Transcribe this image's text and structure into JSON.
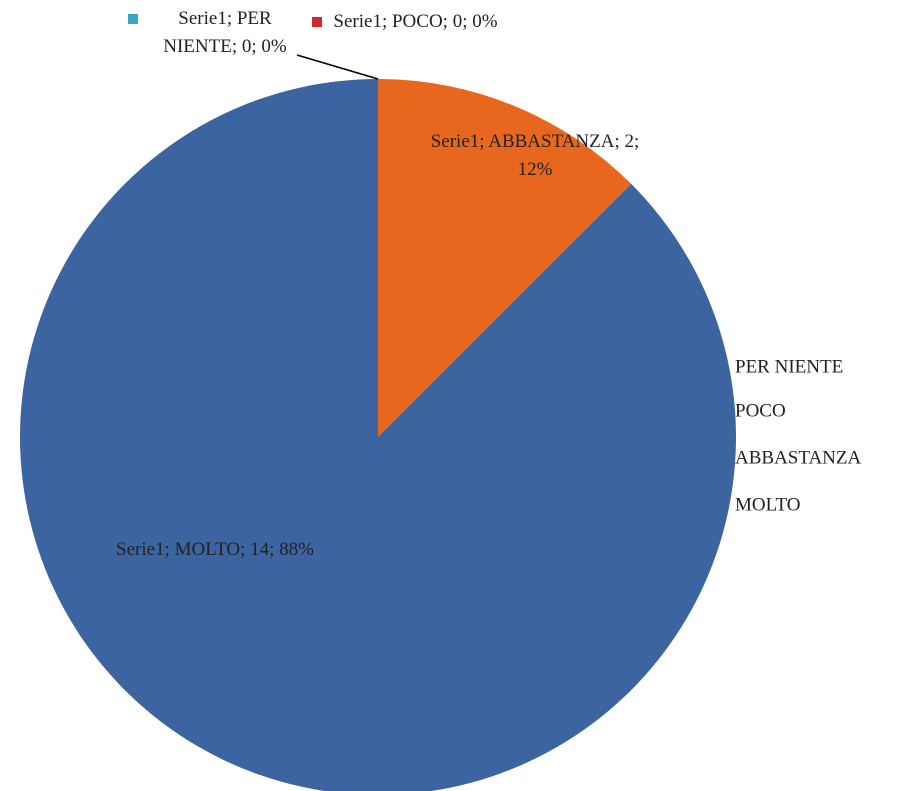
{
  "chart_data": {
    "type": "pie",
    "categories": [
      "PER NIENTE",
      "POCO",
      "ABBASTANZA",
      "MOLTO"
    ],
    "series": [
      {
        "name": "Serie1",
        "values": [
          0,
          0,
          2,
          14
        ],
        "value_labels": [
          "Serie1; PER NIENTE; 0; 0%",
          "Serie1; POCO; 0; 0%",
          "Serie1; ABBASTANZA; 2; 12%",
          "Serie1; MOLTO; 14; 88%"
        ],
        "colors": [
          "#35a6c4",
          "#d3262f",
          "#e8671f",
          "#3b64a0"
        ]
      }
    ],
    "legend": "right"
  }
}
